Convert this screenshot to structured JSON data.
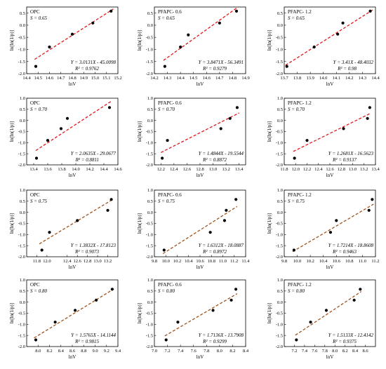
{
  "colors": {
    "fit_red": "#e0181b",
    "fit_brown": "#a0521c",
    "points": "#000000"
  },
  "chart_data": [
    {
      "type": "scatter",
      "label": "OPC",
      "s_text": "S = 0.65",
      "eq": "Y = 3.0131X - 45.0098",
      "r2": "R² = 0.9762",
      "fit_color": "fit_red",
      "xlabel": "lnV",
      "ylabel": "ln[ln(1/p)]",
      "xlim": [
        14.4,
        15.2
      ],
      "ylim": [
        -2.0,
        0.75
      ],
      "xticks": [
        14.4,
        14.5,
        14.6,
        14.7,
        14.8,
        14.9,
        15.0,
        15.1,
        15.2
      ],
      "xtick_labels": [
        "14.4",
        "14.5",
        "14.6",
        "14.7",
        "14.8",
        "14.9",
        "15.0",
        "15.1",
        "15.2"
      ],
      "yticks": [
        -2.0,
        -1.5,
        -1.0,
        -0.5,
        0.0,
        0.5
      ],
      "ytick_labels": [
        "-2.0",
        "-1.5",
        "-1.0",
        "-0.5",
        "0.0",
        "0.5"
      ],
      "points": {
        "x": [
          14.48,
          14.6,
          14.8,
          14.98,
          15.14
        ],
        "y": [
          -1.7,
          -0.9,
          -0.37,
          0.09,
          0.58
        ]
      },
      "fit": {
        "slope": 3.0131,
        "intercept": -45.0098,
        "x0": 14.47,
        "x1": 15.16
      }
    },
    {
      "type": "scatter",
      "label": "PFAPC- 0.6",
      "s_text": "S = 0.65",
      "eq": "Y = 3.8471X - 56.3491",
      "r2": "R² = 0.9279",
      "fit_color": "fit_red",
      "xlabel": "lnV",
      "ylabel": "ln[ln(1/p)]",
      "xlim": [
        14.2,
        14.9
      ],
      "ylim": [
        -2.0,
        0.75
      ],
      "xticks": [
        14.2,
        14.3,
        14.4,
        14.5,
        14.6,
        14.7,
        14.8,
        14.9
      ],
      "xtick_labels": [
        "14.2",
        "14.3",
        "14.4",
        "14.5",
        "14.6",
        "14.7",
        "14.8",
        "14.9"
      ],
      "yticks": [
        -2.0,
        -1.5,
        -1.0,
        -0.5,
        0.0,
        0.5
      ],
      "ytick_labels": [
        "-2.0",
        "-1.5",
        "-1.0",
        "-0.5",
        "0.0",
        "0.5"
      ],
      "points": {
        "x": [
          14.28,
          14.4,
          14.46,
          14.7,
          14.83
        ],
        "y": [
          -1.7,
          -0.9,
          -0.4,
          0.09,
          0.58
        ]
      },
      "fit": {
        "slope": 3.8471,
        "intercept": -56.3491,
        "x0": 14.27,
        "x1": 14.84
      }
    },
    {
      "type": "scatter",
      "label": "PFAPC- 1.2",
      "s_text": "S = 0.65",
      "eq": "Y = 3.41X - 48.4032",
      "r2": "R² = 0.98",
      "fit_color": "fit_red",
      "xlabel": "lnV",
      "ylabel": "ln[ln(1/p)]",
      "xlim": [
        13.7,
        14.4
      ],
      "ylim": [
        -2.0,
        0.75
      ],
      "xticks": [
        13.7,
        13.8,
        13.9,
        14.0,
        14.1,
        14.2,
        14.3,
        14.4
      ],
      "xtick_labels": [
        "13.7",
        "13.8",
        "13.9",
        "14.0",
        "14.1",
        "14.2",
        "14.3",
        "14.4"
      ],
      "yticks": [
        -2.0,
        -1.5,
        -1.0,
        -0.5,
        0.0,
        0.5
      ],
      "ytick_labels": [
        "-2.0",
        "-1.5",
        "-1.0",
        "-0.5",
        "0.0",
        "0.5"
      ],
      "points": {
        "x": [
          13.72,
          13.93,
          14.11,
          14.15,
          14.36
        ],
        "y": [
          -1.7,
          -0.9,
          -0.37,
          0.09,
          0.58
        ]
      },
      "fit": {
        "slope": 3.41,
        "intercept": -48.4032,
        "x0": 13.71,
        "x1": 14.38
      }
    },
    {
      "type": "scatter",
      "label": "OPC",
      "s_text": "S = 0.70",
      "eq": "Y = 2.0635X - 29.0677",
      "r2": "R² = 0.8811",
      "fit_color": "fit_red",
      "xlabel": "lnV",
      "ylabel": "ln[ln(1/p)]",
      "xlim": [
        13.3,
        14.6
      ],
      "ylim": [
        -2.0,
        1.0
      ],
      "xticks": [
        13.4,
        13.6,
        13.8,
        14.0,
        14.2,
        14.4,
        14.6
      ],
      "xtick_labels": [
        "13.4",
        "13.6",
        "13.8",
        "14.0",
        "14.2",
        "14.4",
        "14.6"
      ],
      "yticks": [
        -2.0,
        -1.5,
        -1.0,
        -0.5,
        0.0,
        0.5,
        1.0
      ],
      "ytick_labels": [
        "-2.0",
        "-1.5",
        "-1.0",
        "-0.5",
        "0.0",
        "0.5",
        "1.0"
      ],
      "points": {
        "x": [
          13.44,
          13.6,
          13.79,
          13.88,
          14.48
        ],
        "y": [
          -1.7,
          -0.9,
          -0.37,
          0.09,
          0.58
        ]
      },
      "fit": {
        "slope": 2.0635,
        "intercept": -29.0677,
        "x0": 13.43,
        "x1": 14.5
      }
    },
    {
      "type": "scatter",
      "label": "PFAPC- 0.6",
      "s_text": "S = 0.70",
      "eq": "Y = 1.4844X - 19.5544",
      "r2": "R² = 0.8872",
      "fit_color": "fit_red",
      "xlabel": "lnV",
      "ylabel": "ln[ln(1/p)]",
      "xlim": [
        12.1,
        13.5
      ],
      "ylim": [
        -2.0,
        1.0
      ],
      "xticks": [
        12.2,
        12.4,
        12.6,
        12.8,
        13.0,
        13.2,
        13.4
      ],
      "xtick_labels": [
        "12.2",
        "12.4",
        "12.6",
        "12.8",
        "13.0",
        "13.2",
        "13.4"
      ],
      "yticks": [
        -2.0,
        -1.5,
        -1.0,
        -0.5,
        0.0,
        0.5,
        1.0
      ],
      "ytick_labels": [
        "-2.0",
        "-1.5",
        "-1.0",
        "-0.5",
        "0.0",
        "0.5",
        "1.0"
      ],
      "points": {
        "x": [
          12.22,
          12.3,
          13.12,
          13.26,
          13.37
        ],
        "y": [
          -1.7,
          -0.9,
          -0.37,
          0.09,
          0.58
        ]
      },
      "fit": {
        "slope": 1.4844,
        "intercept": -19.5544,
        "x0": 12.2,
        "x1": 13.4
      }
    },
    {
      "type": "scatter",
      "label": "PFAPC- 1.2",
      "s_text": "S = 0.70",
      "eq": "Y = 1.2681X - 16.5623",
      "r2": "R² = 0.9137",
      "fit_color": "fit_red",
      "xlabel": "lnV",
      "ylabel": "ln[ln(1/p)]",
      "xlim": [
        11.8,
        13.4
      ],
      "ylim": [
        -2.0,
        1.0
      ],
      "xticks": [
        11.8,
        12.0,
        12.2,
        12.4,
        12.6,
        12.8,
        13.0,
        13.2,
        13.4
      ],
      "xtick_labels": [
        "11.8",
        "12.0",
        "12.2",
        "12.4",
        "12.6",
        "12.8",
        "13.0",
        "13.2",
        "13.4"
      ],
      "yticks": [
        -2.0,
        -1.5,
        -1.0,
        -0.5,
        0.0,
        0.5,
        1.0
      ],
      "ytick_labels": [
        "-2.0",
        "-1.5",
        "-1.0",
        "-0.5",
        "0.0",
        "0.5",
        "1.0"
      ],
      "points": {
        "x": [
          11.98,
          12.2,
          12.84,
          13.26,
          13.3
        ],
        "y": [
          -1.7,
          -0.9,
          -0.37,
          0.09,
          0.58
        ]
      },
      "fit": {
        "slope": 1.2681,
        "intercept": -16.5623,
        "x0": 11.96,
        "x1": 13.32
      }
    },
    {
      "type": "scatter",
      "label": "OPC",
      "s_text": "S = 0.75",
      "eq": "Y = 1.3832X - 17.8123",
      "r2": "R² = 0.9073",
      "fit_color": "fit_brown",
      "xlabel": "lnV",
      "ylabel": "ln[ln(1/p)]",
      "xlim": [
        11.6,
        13.4
      ],
      "ylim": [
        -2.0,
        1.0
      ],
      "xticks": [
        11.8,
        12.0,
        12.4,
        12.6,
        12.8,
        13.0,
        13.2
      ],
      "xtick_labels": [
        "11.8",
        "12.0",
        "12.4",
        "12.6",
        "12.8",
        "13.0",
        "13.2"
      ],
      "yticks": [
        -2.0,
        -1.5,
        -1.0,
        -0.5,
        0.0,
        0.5,
        1.0
      ],
      "ytick_labels": [
        "-2.0",
        "-1.5",
        "-1.0",
        "-0.5",
        "0.0",
        "0.5",
        "1.0"
      ],
      "points": {
        "x": [
          11.9,
          12.05,
          12.6,
          13.2,
          13.27
        ],
        "y": [
          -1.7,
          -0.9,
          -0.37,
          0.09,
          0.58
        ]
      },
      "fit": {
        "slope": 1.3832,
        "intercept": -17.8123,
        "x0": 11.85,
        "x1": 13.3
      }
    },
    {
      "type": "scatter",
      "label": "PFAPC- 0.6",
      "s_text": "S = 0.75",
      "eq": "Y = 1.6312X - 18.0887",
      "r2": "R² = 0.8972",
      "fit_color": "fit_brown",
      "xlabel": "lnV",
      "ylabel": "ln[ln(1/p)]",
      "xlim": [
        9.8,
        11.4
      ],
      "ylim": [
        -2.0,
        1.0
      ],
      "xticks": [
        9.8,
        10.0,
        10.2,
        10.4,
        10.6,
        10.8,
        11.0,
        11.2,
        11.4
      ],
      "xtick_labels": [
        "9.8",
        "10.0",
        "10.2",
        "10.4",
        "10.6",
        "10.8",
        "11.0",
        "11.2",
        "11.4"
      ],
      "yticks": [
        -2.0,
        -1.5,
        -1.0,
        -0.5,
        0.0,
        0.5,
        1.0
      ],
      "ytick_labels": [
        "-2.0",
        "-1.5",
        "-1.0",
        "-0.5",
        "0.0",
        "0.5",
        "1.0"
      ],
      "points": {
        "x": [
          9.97,
          10.78,
          11.03,
          11.06,
          11.23
        ],
        "y": [
          -1.7,
          -0.9,
          -0.37,
          0.09,
          0.58
        ]
      },
      "fit": {
        "slope": 1.6312,
        "intercept": -18.0887,
        "x0": 9.95,
        "x1": 11.25
      }
    },
    {
      "type": "scatter",
      "label": "PFAPC- 1.2",
      "s_text": "S = 0.75",
      "eq": "Y = 1.7214X - 18.8608",
      "r2": "R² = 0.9463",
      "fit_color": "fit_brown",
      "xlabel": "lnV",
      "ylabel": "ln[ln(1/p)]",
      "xlim": [
        9.8,
        11.2
      ],
      "ylim": [
        -2.0,
        1.0
      ],
      "xticks": [
        9.8,
        10.0,
        10.2,
        10.4,
        10.6,
        10.8,
        11.0,
        11.2
      ],
      "xtick_labels": [
        "9.8",
        "10.0",
        "10.2",
        "10.4",
        "10.6",
        "10.8",
        "11.0",
        "11.2"
      ],
      "yticks": [
        -2.0,
        -1.5,
        -1.0,
        -0.5,
        0.0,
        0.5,
        1.0
      ],
      "ytick_labels": [
        "-2.0",
        "-1.5",
        "-1.0",
        "-0.5",
        "0.0",
        "0.5",
        "1.0"
      ],
      "points": {
        "x": [
          9.95,
          10.51,
          10.6,
          11.1,
          11.15
        ],
        "y": [
          -1.7,
          -0.9,
          -0.37,
          0.09,
          0.58
        ]
      },
      "fit": {
        "slope": 1.7214,
        "intercept": -18.8608,
        "x0": 9.93,
        "x1": 11.17
      }
    },
    {
      "type": "scatter",
      "label": "OPC",
      "s_text": "S = 0.80",
      "eq": "Y = 1.5765X - 14.1144",
      "r2": "R² = 0.9815",
      "fit_color": "fit_brown",
      "xlabel": "lnV",
      "ylabel": "ln[ln(1/p)]",
      "xlim": [
        7.8,
        9.4
      ],
      "ylim": [
        -2.0,
        1.0
      ],
      "xticks": [
        8.0,
        8.2,
        8.4,
        8.6,
        8.8,
        9.0,
        9.2,
        9.4
      ],
      "xtick_labels": [
        "8.0",
        "8.2",
        "8.4",
        "8.6",
        "8.8",
        "9.0",
        "9.2",
        "9.4"
      ],
      "yticks": [
        -2.0,
        -1.5,
        -1.0,
        -0.5,
        0.0,
        0.5,
        1.0
      ],
      "ytick_labels": [
        "-2.0",
        "-1.5",
        "-1.0",
        "-0.5",
        "0.0",
        "0.5",
        "1.0"
      ],
      "points": {
        "x": [
          7.96,
          8.3,
          8.65,
          9.02,
          9.3
        ],
        "y": [
          -1.7,
          -0.9,
          -0.37,
          0.09,
          0.58
        ]
      },
      "fit": {
        "slope": 1.5765,
        "intercept": -14.1144,
        "x0": 7.93,
        "x1": 9.33
      }
    },
    {
      "type": "scatter",
      "label": "PFAPC- 0.6",
      "s_text": "S = 0.80",
      "eq": "Y = 1.7136X - 13.7908",
      "r2": "R² = 0.9299",
      "fit_color": "fit_brown",
      "xlabel": "lnV",
      "ylabel": "ln[ln(1/p)]",
      "xlim": [
        7.0,
        8.4
      ],
      "ylim": [
        -2.0,
        1.0
      ],
      "xticks": [
        7.0,
        7.2,
        7.4,
        7.6,
        7.8,
        8.0,
        8.2,
        8.4
      ],
      "xtick_labels": [
        "7.0",
        "7.2",
        "7.4",
        "7.6",
        "7.8",
        "8.0",
        "8.2",
        "8.4"
      ],
      "yticks": [
        -2.0,
        -1.5,
        -1.0,
        -0.5,
        0.0,
        0.5,
        1.0
      ],
      "ytick_labels": [
        "-2.0",
        "-1.5",
        "-1.0",
        "-0.5",
        "0.0",
        "0.5",
        "1.0"
      ],
      "points": {
        "x": [
          7.18,
          7.36,
          7.9,
          8.18,
          8.25
        ],
        "y": [
          -1.7,
          -0.9,
          -0.37,
          0.09,
          0.58
        ]
      },
      "fit": {
        "slope": 1.7136,
        "intercept": -13.7908,
        "x0": 7.16,
        "x1": 8.27
      }
    },
    {
      "type": "scatter",
      "label": "PFAPC- 1.2",
      "s_text": "S = 0.80",
      "eq": "Y = 1.5133X - 12.4142",
      "r2": "R² = 0.9375",
      "fit_color": "fit_brown",
      "xlabel": "lnV",
      "ylabel": "ln[ln(1/p)]",
      "xlim": [
        7.0,
        8.8
      ],
      "ylim": [
        -2.0,
        1.0
      ],
      "xticks": [
        7.2,
        7.4,
        7.6,
        7.8,
        8.0,
        8.2,
        8.4,
        8.6
      ],
      "xtick_labels": [
        "7.2",
        "7.4",
        "7.6",
        "7.8",
        "8.0",
        "8.2",
        "8.4",
        "8.6"
      ],
      "yticks": [
        -2.0,
        -1.5,
        -1.0,
        -0.5,
        0.0,
        0.5,
        1.0
      ],
      "ytick_labels": [
        "-2.0",
        "-1.5",
        "-1.0",
        "-0.5",
        "0.0",
        "0.5",
        "1.0"
      ],
      "points": {
        "x": [
          7.24,
          7.52,
          7.83,
          8.38,
          8.5
        ],
        "y": [
          -1.7,
          -0.9,
          -0.37,
          0.09,
          0.58
        ]
      },
      "fit": {
        "slope": 1.5133,
        "intercept": -12.4142,
        "x0": 7.22,
        "x1": 8.52
      }
    }
  ]
}
